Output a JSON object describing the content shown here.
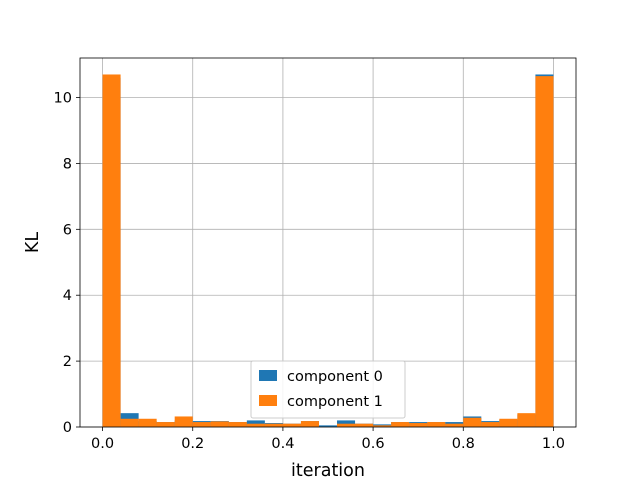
{
  "chart_data": {
    "type": "bar",
    "xlabel": "iteration",
    "ylabel": "KL",
    "xlim": [
      -0.05,
      1.05
    ],
    "ylim": [
      0,
      11.2
    ],
    "xticks": [
      "0.0",
      "0.2",
      "0.4",
      "0.6",
      "0.8",
      "1.0"
    ],
    "yticks": [
      "0",
      "2",
      "4",
      "6",
      "8",
      "10"
    ],
    "grid": true,
    "legend_position": "lower-center",
    "bin_edges": [
      0.0,
      0.04,
      0.08,
      0.12,
      0.16,
      0.2,
      0.24,
      0.28,
      0.32,
      0.36,
      0.4,
      0.44,
      0.48,
      0.52,
      0.56,
      0.6,
      0.64,
      0.68,
      0.72,
      0.76,
      0.8,
      0.84,
      0.88,
      0.92,
      0.96,
      1.0
    ],
    "series": [
      {
        "name": "component 0",
        "color": "#1f77b4",
        "values": [
          10.6,
          0.42,
          0.18,
          0.15,
          0.2,
          0.18,
          0.18,
          0.15,
          0.2,
          0.12,
          0.1,
          0.18,
          0.05,
          0.2,
          0.1,
          0.08,
          0.15,
          0.15,
          0.15,
          0.15,
          0.32,
          0.18,
          0.22,
          0.38,
          10.7
        ]
      },
      {
        "name": "component 1",
        "color": "#ff7f0e",
        "values": [
          10.7,
          0.25,
          0.25,
          0.15,
          0.32,
          0.15,
          0.17,
          0.15,
          0.1,
          0.1,
          0.1,
          0.18,
          0.0,
          0.1,
          0.1,
          0.05,
          0.15,
          0.12,
          0.15,
          0.1,
          0.28,
          0.15,
          0.25,
          0.42,
          10.65
        ]
      }
    ]
  }
}
